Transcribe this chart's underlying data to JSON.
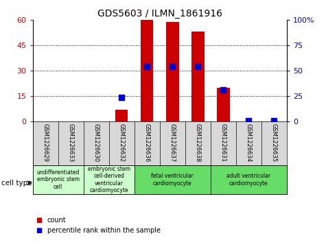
{
  "title": "GDS5603 / ILMN_1861916",
  "samples": [
    "GSM1226629",
    "GSM1226633",
    "GSM1226630",
    "GSM1226632",
    "GSM1226636",
    "GSM1226637",
    "GSM1226638",
    "GSM1226631",
    "GSM1226634",
    "GSM1226635"
  ],
  "counts": [
    0,
    0,
    0,
    7,
    60,
    59,
    53,
    20,
    0,
    0
  ],
  "percentiles": [
    0,
    0,
    0,
    24,
    54,
    54,
    54,
    31,
    1,
    1
  ],
  "ylim_left": [
    0,
    60
  ],
  "ylim_right": [
    0,
    100
  ],
  "yticks_left": [
    0,
    15,
    30,
    45,
    60
  ],
  "ytick_labels_left": [
    "0",
    "15",
    "30",
    "45",
    "60"
  ],
  "yticks_right": [
    0,
    25,
    50,
    75,
    100
  ],
  "ytick_labels_right": [
    "0",
    "25",
    "50",
    "75",
    "100%"
  ],
  "bar_color": "#CC0000",
  "dot_color": "#0000CC",
  "cell_types": [
    {
      "label": "undifferentiated\nembryonic stem\ncell",
      "start": 0,
      "end": 2,
      "color": "#ccffcc"
    },
    {
      "label": "embryonic stem\ncell-derived\nventricular\ncardiomyocyte",
      "start": 2,
      "end": 4,
      "color": "#ccffcc"
    },
    {
      "label": "fetal ventricular\ncardiomyocyte",
      "start": 4,
      "end": 7,
      "color": "#66dd66"
    },
    {
      "label": "adult ventricular\ncardiomyocyte",
      "start": 7,
      "end": 10,
      "color": "#66dd66"
    }
  ],
  "legend_count_label": "count",
  "legend_pct_label": "percentile rank within the sample",
  "cell_type_label": "cell type",
  "bg_color": "#ffffff",
  "plot_bg": "#ffffff",
  "grid_color": "#000000",
  "tick_color_left": "#CC0000",
  "tick_color_right": "#0000CC",
  "bar_width": 0.5,
  "dot_size": 30,
  "label_bg": "#d8d8d8"
}
